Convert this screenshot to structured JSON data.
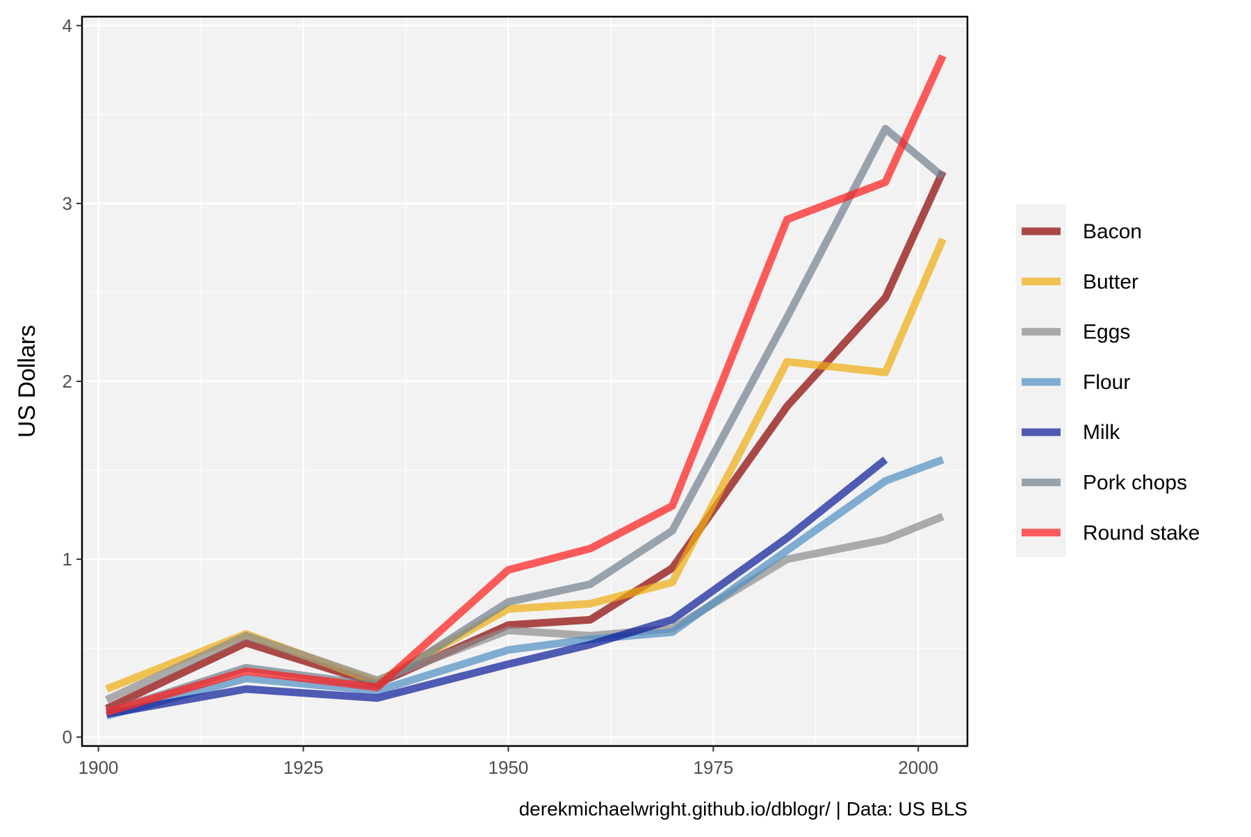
{
  "chart_data": {
    "type": "line",
    "xlabel": "",
    "ylabel": "US Dollars",
    "caption": "derekmichaelwright.github.io/dblogr/ | Data: US BLS",
    "xlim": [
      1898,
      2006
    ],
    "ylim": [
      -0.05,
      4.05
    ],
    "x_ticks": [
      1900,
      1925,
      1950,
      1975,
      2000
    ],
    "y_ticks": [
      0,
      1,
      2,
      3,
      4
    ],
    "x_minor": [
      1912.5,
      1937.5,
      1962.5,
      1987.5
    ],
    "y_minor": [
      0.5,
      1.5,
      2.5,
      3.5
    ],
    "grid": true,
    "legend_position": "right",
    "series": [
      {
        "name": "Bacon",
        "color": "#8B0000",
        "x": [
          1901,
          1918,
          1934,
          1950,
          1960,
          1970,
          1984,
          1996,
          2003
        ],
        "y": [
          0.16,
          0.53,
          0.3,
          0.63,
          0.66,
          0.95,
          1.86,
          2.47,
          3.18
        ]
      },
      {
        "name": "Butter",
        "color": "#EEAD0E",
        "x": [
          1901,
          1918,
          1934,
          1950,
          1960,
          1970,
          1984,
          1996,
          2003
        ],
        "y": [
          0.27,
          0.58,
          0.31,
          0.72,
          0.75,
          0.87,
          2.11,
          2.05,
          2.8
        ]
      },
      {
        "name": "Eggs",
        "color": "#8C8C8C",
        "x": [
          1901,
          1918,
          1934,
          1950,
          1960,
          1970,
          1984,
          1996,
          2003
        ],
        "y": [
          0.21,
          0.57,
          0.32,
          0.6,
          0.57,
          0.61,
          1.0,
          1.11,
          1.24
        ]
      },
      {
        "name": "Flour",
        "color": "#4F8FC2",
        "x": [
          1901,
          1918,
          1934,
          1950,
          1960,
          1970,
          1984,
          1996,
          2003
        ],
        "y": [
          0.12,
          0.33,
          0.26,
          0.49,
          0.55,
          0.59,
          1.05,
          1.44,
          1.56
        ]
      },
      {
        "name": "Milk",
        "color": "#0A1A99",
        "x": [
          1901,
          1918,
          1934,
          1950,
          1960,
          1970,
          1984,
          1996
        ],
        "y": [
          0.13,
          0.27,
          0.22,
          0.41,
          0.52,
          0.66,
          1.12,
          1.56
        ]
      },
      {
        "name": "Pork chops",
        "color": "#708090",
        "x": [
          1901,
          1918,
          1934,
          1950,
          1960,
          1970,
          1984,
          1996,
          2003
        ],
        "y": [
          0.14,
          0.39,
          0.29,
          0.76,
          0.86,
          1.16,
          2.36,
          3.42,
          3.15
        ]
      },
      {
        "name": "Round stake",
        "color": "#FF1A1A",
        "x": [
          1901,
          1918,
          1934,
          1950,
          1960,
          1970,
          1984,
          1996,
          2003
        ],
        "y": [
          0.14,
          0.37,
          0.28,
          0.94,
          1.06,
          1.3,
          2.91,
          3.12,
          3.83
        ]
      }
    ]
  }
}
